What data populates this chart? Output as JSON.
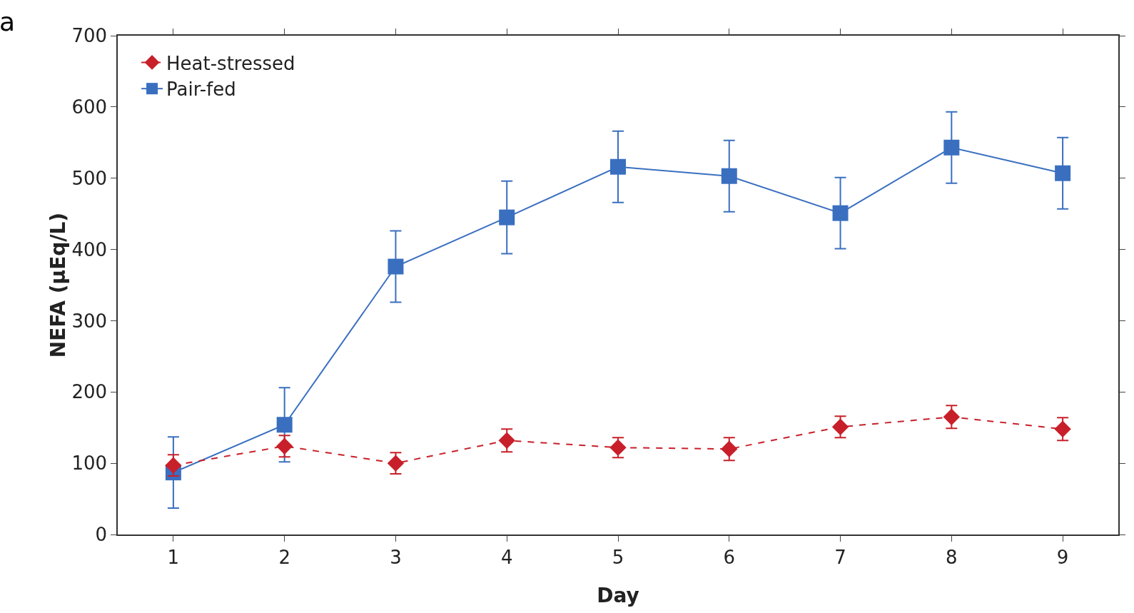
{
  "chart_data": {
    "type": "line",
    "xlabel": "Day",
    "ylabel": "NEFA (µEq/L)",
    "annotations": [
      "a"
    ],
    "x": [
      1,
      2,
      3,
      4,
      5,
      6,
      7,
      8,
      9
    ],
    "series": [
      {
        "name": "Heat-stressed",
        "color": "#c8202a",
        "marker": "diamond",
        "line_style": "dashed",
        "values": [
          97,
          124,
          100,
          132,
          122,
          120,
          151,
          165,
          148
        ],
        "errors": [
          15,
          15,
          15,
          16,
          14,
          16,
          15,
          16,
          16
        ]
      },
      {
        "name": "Pair-fed",
        "color": "#3a6fc0",
        "marker": "square",
        "line_style": "solid",
        "values": [
          87,
          154,
          376,
          445,
          516,
          503,
          451,
          543,
          507
        ],
        "errors": [
          50,
          52,
          50,
          51,
          50,
          50,
          50,
          50,
          50
        ]
      }
    ],
    "xlim": [
      0.5,
      9.5
    ],
    "xticks": [
      1,
      2,
      3,
      4,
      5,
      6,
      7,
      8,
      9
    ],
    "ylim": [
      0,
      700
    ],
    "yticks": [
      0,
      100,
      200,
      300,
      400,
      500,
      600,
      700
    ],
    "grid": false,
    "legend": "top left"
  }
}
